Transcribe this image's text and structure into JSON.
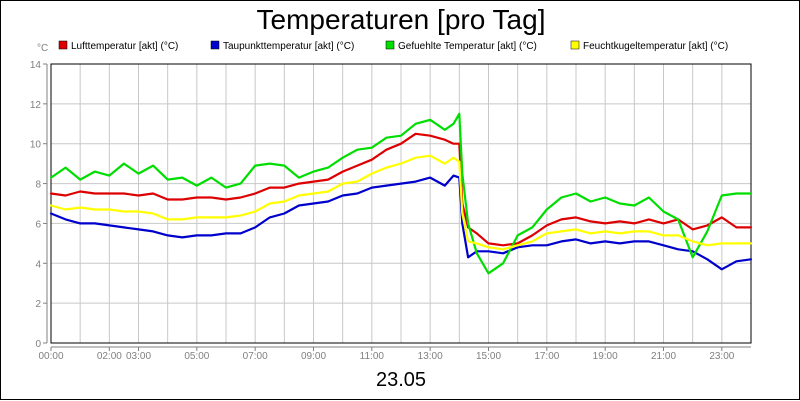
{
  "chart_data": {
    "type": "line",
    "title": "Temperaturen [pro Tag]",
    "unit_label": "°C",
    "xlabel": "23.05",
    "xlim": [
      0,
      24
    ],
    "ylim": [
      0,
      14
    ],
    "y_ticks": [
      0,
      2,
      4,
      6,
      8,
      10,
      12,
      14
    ],
    "x_ticks": [
      {
        "value": 0,
        "label": "00:00"
      },
      {
        "value": 2,
        "label": "02:00"
      },
      {
        "value": 3,
        "label": "03:00"
      },
      {
        "value": 5,
        "label": "05:00"
      },
      {
        "value": 7,
        "label": "07:00"
      },
      {
        "value": 9,
        "label": "09:00"
      },
      {
        "value": 11,
        "label": "11:00"
      },
      {
        "value": 13,
        "label": "13:00"
      },
      {
        "value": 15,
        "label": "15:00"
      },
      {
        "value": 17,
        "label": "17:00"
      },
      {
        "value": 19,
        "label": "19:00"
      },
      {
        "value": 21,
        "label": "21:00"
      },
      {
        "value": 23,
        "label": "23:00"
      }
    ],
    "grid": true,
    "legend_position": "top",
    "series": [
      {
        "name": "Lufttemperatur [akt] (°C)",
        "color": "#dd0000",
        "points": [
          [
            0,
            7.5
          ],
          [
            0.5,
            7.4
          ],
          [
            1,
            7.6
          ],
          [
            1.5,
            7.5
          ],
          [
            2,
            7.5
          ],
          [
            2.5,
            7.5
          ],
          [
            3,
            7.4
          ],
          [
            3.5,
            7.5
          ],
          [
            4,
            7.2
          ],
          [
            4.5,
            7.2
          ],
          [
            5,
            7.3
          ],
          [
            5.5,
            7.3
          ],
          [
            6,
            7.2
          ],
          [
            6.5,
            7.3
          ],
          [
            7,
            7.5
          ],
          [
            7.5,
            7.8
          ],
          [
            8,
            7.8
          ],
          [
            8.5,
            8.0
          ],
          [
            9,
            8.1
          ],
          [
            9.5,
            8.2
          ],
          [
            10,
            8.6
          ],
          [
            10.5,
            8.9
          ],
          [
            11,
            9.2
          ],
          [
            11.5,
            9.7
          ],
          [
            12,
            10.0
          ],
          [
            12.5,
            10.5
          ],
          [
            13,
            10.4
          ],
          [
            13.5,
            10.2
          ],
          [
            13.8,
            10.0
          ],
          [
            14,
            10.0
          ],
          [
            14.1,
            7.0
          ],
          [
            14.3,
            5.8
          ],
          [
            14.6,
            5.5
          ],
          [
            15,
            5.0
          ],
          [
            15.5,
            4.9
          ],
          [
            16,
            5.0
          ],
          [
            16.5,
            5.4
          ],
          [
            17,
            5.9
          ],
          [
            17.5,
            6.2
          ],
          [
            18,
            6.3
          ],
          [
            18.5,
            6.1
          ],
          [
            19,
            6.0
          ],
          [
            19.5,
            6.1
          ],
          [
            20,
            6.0
          ],
          [
            20.5,
            6.2
          ],
          [
            21,
            6.0
          ],
          [
            21.5,
            6.2
          ],
          [
            22,
            5.7
          ],
          [
            22.5,
            5.9
          ],
          [
            23,
            6.3
          ],
          [
            23.5,
            5.8
          ],
          [
            24,
            5.8
          ]
        ]
      },
      {
        "name": "Taupunkttemperatur [akt] (°C)",
        "color": "#0000cc",
        "points": [
          [
            0,
            6.5
          ],
          [
            0.5,
            6.2
          ],
          [
            1,
            6.0
          ],
          [
            1.5,
            6.0
          ],
          [
            2,
            5.9
          ],
          [
            2.5,
            5.8
          ],
          [
            3,
            5.7
          ],
          [
            3.5,
            5.6
          ],
          [
            4,
            5.4
          ],
          [
            4.5,
            5.3
          ],
          [
            5,
            5.4
          ],
          [
            5.5,
            5.4
          ],
          [
            6,
            5.5
          ],
          [
            6.5,
            5.5
          ],
          [
            7,
            5.8
          ],
          [
            7.5,
            6.3
          ],
          [
            8,
            6.5
          ],
          [
            8.5,
            6.9
          ],
          [
            9,
            7.0
          ],
          [
            9.5,
            7.1
          ],
          [
            10,
            7.4
          ],
          [
            10.5,
            7.5
          ],
          [
            11,
            7.8
          ],
          [
            11.5,
            7.9
          ],
          [
            12,
            8.0
          ],
          [
            12.5,
            8.1
          ],
          [
            13,
            8.3
          ],
          [
            13.5,
            7.9
          ],
          [
            13.8,
            8.4
          ],
          [
            14,
            8.3
          ],
          [
            14.1,
            6.0
          ],
          [
            14.3,
            4.3
          ],
          [
            14.6,
            4.6
          ],
          [
            15,
            4.6
          ],
          [
            15.5,
            4.5
          ],
          [
            16,
            4.8
          ],
          [
            16.5,
            4.9
          ],
          [
            17,
            4.9
          ],
          [
            17.5,
            5.1
          ],
          [
            18,
            5.2
          ],
          [
            18.5,
            5.0
          ],
          [
            19,
            5.1
          ],
          [
            19.5,
            5.0
          ],
          [
            20,
            5.1
          ],
          [
            20.5,
            5.1
          ],
          [
            21,
            4.9
          ],
          [
            21.5,
            4.7
          ],
          [
            22,
            4.6
          ],
          [
            22.5,
            4.2
          ],
          [
            23,
            3.7
          ],
          [
            23.5,
            4.1
          ],
          [
            24,
            4.2
          ]
        ]
      },
      {
        "name": "Gefuehlte Temperatur [akt] (°C)",
        "color": "#00dd00",
        "points": [
          [
            0,
            8.3
          ],
          [
            0.5,
            8.8
          ],
          [
            1,
            8.2
          ],
          [
            1.5,
            8.6
          ],
          [
            2,
            8.4
          ],
          [
            2.5,
            9.0
          ],
          [
            3,
            8.5
          ],
          [
            3.5,
            8.9
          ],
          [
            4,
            8.2
          ],
          [
            4.5,
            8.3
          ],
          [
            5,
            7.9
          ],
          [
            5.5,
            8.3
          ],
          [
            6,
            7.8
          ],
          [
            6.5,
            8.0
          ],
          [
            7,
            8.9
          ],
          [
            7.5,
            9.0
          ],
          [
            8,
            8.9
          ],
          [
            8.5,
            8.3
          ],
          [
            9,
            8.6
          ],
          [
            9.5,
            8.8
          ],
          [
            10,
            9.3
          ],
          [
            10.5,
            9.7
          ],
          [
            11,
            9.8
          ],
          [
            11.5,
            10.3
          ],
          [
            12,
            10.4
          ],
          [
            12.5,
            11.0
          ],
          [
            13,
            11.2
          ],
          [
            13.5,
            10.7
          ],
          [
            13.8,
            11.0
          ],
          [
            14,
            11.5
          ],
          [
            14.1,
            8.5
          ],
          [
            14.3,
            6.0
          ],
          [
            14.6,
            4.5
          ],
          [
            15,
            3.5
          ],
          [
            15.5,
            4.0
          ],
          [
            16,
            5.4
          ],
          [
            16.5,
            5.8
          ],
          [
            17,
            6.7
          ],
          [
            17.5,
            7.3
          ],
          [
            18,
            7.5
          ],
          [
            18.5,
            7.1
          ],
          [
            19,
            7.3
          ],
          [
            19.5,
            7.0
          ],
          [
            20,
            6.9
          ],
          [
            20.5,
            7.3
          ],
          [
            21,
            6.6
          ],
          [
            21.5,
            6.2
          ],
          [
            22,
            4.3
          ],
          [
            22.5,
            5.6
          ],
          [
            23,
            7.4
          ],
          [
            23.5,
            7.5
          ],
          [
            24,
            7.5
          ]
        ]
      },
      {
        "name": "Feuchtkugeltemperatur [akt] (°C)",
        "color": "#ffff00",
        "points": [
          [
            0,
            6.9
          ],
          [
            0.5,
            6.7
          ],
          [
            1,
            6.8
          ],
          [
            1.5,
            6.7
          ],
          [
            2,
            6.7
          ],
          [
            2.5,
            6.6
          ],
          [
            3,
            6.6
          ],
          [
            3.5,
            6.5
          ],
          [
            4,
            6.2
          ],
          [
            4.5,
            6.2
          ],
          [
            5,
            6.3
          ],
          [
            5.5,
            6.3
          ],
          [
            6,
            6.3
          ],
          [
            6.5,
            6.4
          ],
          [
            7,
            6.6
          ],
          [
            7.5,
            7.0
          ],
          [
            8,
            7.1
          ],
          [
            8.5,
            7.4
          ],
          [
            9,
            7.5
          ],
          [
            9.5,
            7.6
          ],
          [
            10,
            8.0
          ],
          [
            10.5,
            8.1
          ],
          [
            11,
            8.5
          ],
          [
            11.5,
            8.8
          ],
          [
            12,
            9.0
          ],
          [
            12.5,
            9.3
          ],
          [
            13,
            9.4
          ],
          [
            13.5,
            9.0
          ],
          [
            13.8,
            9.3
          ],
          [
            14,
            9.1
          ],
          [
            14.1,
            6.5
          ],
          [
            14.3,
            5.1
          ],
          [
            14.6,
            5.0
          ],
          [
            15,
            4.8
          ],
          [
            15.5,
            4.7
          ],
          [
            16,
            4.9
          ],
          [
            16.5,
            5.1
          ],
          [
            17,
            5.5
          ],
          [
            17.5,
            5.6
          ],
          [
            18,
            5.7
          ],
          [
            18.5,
            5.5
          ],
          [
            19,
            5.6
          ],
          [
            19.5,
            5.5
          ],
          [
            20,
            5.6
          ],
          [
            20.5,
            5.6
          ],
          [
            21,
            5.4
          ],
          [
            21.5,
            5.4
          ],
          [
            22,
            5.1
          ],
          [
            22.5,
            4.9
          ],
          [
            23,
            5.0
          ],
          [
            23.5,
            5.0
          ],
          [
            24,
            5.0
          ]
        ]
      }
    ]
  }
}
